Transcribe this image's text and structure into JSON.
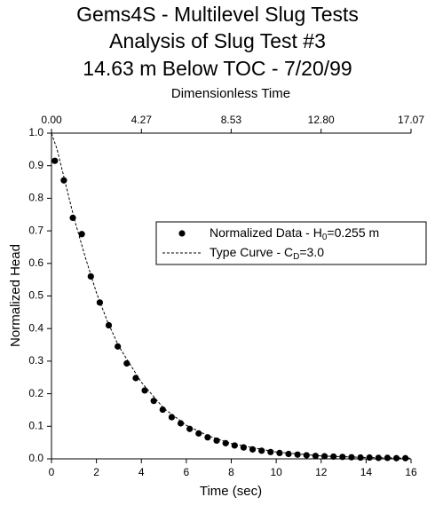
{
  "chart_data": {
    "type": "scatter",
    "title": [
      "Gems4S - Multilevel Slug Tests",
      "Analysis of Slug Test #3",
      "14.63 m Below TOC - 7/20/99"
    ],
    "x_label": "Time (sec)",
    "y_label": "Normalized Head",
    "x2_label": "Dimensionless Time",
    "xlim": [
      0,
      16
    ],
    "xticks": [
      0,
      2,
      4,
      6,
      8,
      10,
      12,
      14,
      16
    ],
    "x2lim": [
      0,
      17.07
    ],
    "x2ticks": [
      {
        "value": 0,
        "label": "0.00"
      },
      4.27,
      8.53,
      {
        "value": 12.8,
        "label": "12.80"
      },
      17.07
    ],
    "ylim": [
      0,
      1
    ],
    "yticks": [
      {
        "value": 0,
        "label": "0.0"
      },
      0.1,
      0.2,
      0.3,
      0.4,
      0.5,
      0.6,
      0.7,
      0.8,
      0.9,
      {
        "value": 1,
        "label": "1.0"
      }
    ],
    "series": [
      {
        "name": [
          "Normalized Data - H",
          "0",
          "=0.255 m"
        ],
        "type": "scatter",
        "color": "#000000",
        "x": [
          0.15,
          0.55,
          0.95,
          1.35,
          1.75,
          2.15,
          2.55,
          2.95,
          3.35,
          3.75,
          4.15,
          4.55,
          4.95,
          5.35,
          5.75,
          6.15,
          6.55,
          6.95,
          7.35,
          7.75,
          8.15,
          8.55,
          8.95,
          9.35,
          9.75,
          10.15,
          10.55,
          10.95,
          11.35,
          11.75,
          12.15,
          12.55,
          12.95,
          13.35,
          13.75,
          14.15,
          14.55,
          14.95,
          15.35,
          15.75
        ],
        "values": [
          0.915,
          0.855,
          0.74,
          0.69,
          0.56,
          0.48,
          0.41,
          0.345,
          0.293,
          0.248,
          0.21,
          0.178,
          0.151,
          0.128,
          0.109,
          0.092,
          0.078,
          0.066,
          0.056,
          0.048,
          0.041,
          0.035,
          0.029,
          0.025,
          0.021,
          0.018,
          0.015,
          0.013,
          0.011,
          0.009,
          0.008,
          0.007,
          0.006,
          0.005,
          0.004,
          0.004,
          0.003,
          0.003,
          0.002,
          0.002
        ]
      },
      {
        "name": [
          "Type Curve - C",
          "D",
          "=3.0"
        ],
        "type": "line",
        "color": "#000000",
        "x": [
          0,
          0.25,
          0.5,
          0.75,
          1,
          1.5,
          2,
          2.5,
          3,
          4,
          5,
          6,
          7,
          8,
          10,
          12,
          14,
          16
        ],
        "values": [
          1.0,
          0.95,
          0.88,
          0.81,
          0.74,
          0.62,
          0.51,
          0.42,
          0.345,
          0.235,
          0.155,
          0.103,
          0.07,
          0.047,
          0.021,
          0.009,
          0.004,
          0.002
        ]
      }
    ]
  }
}
